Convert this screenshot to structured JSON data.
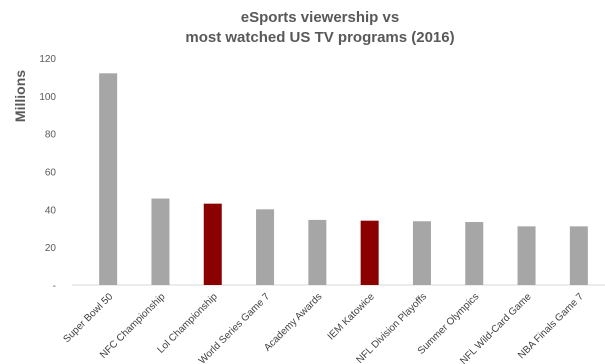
{
  "chart_data": {
    "type": "bar",
    "title_line1": "eSports viewership vs",
    "title_line2": "most watched US TV programs (2016)",
    "xlabel": "",
    "ylabel": "Millions",
    "ylim": [
      0,
      120
    ],
    "yticks": [
      0,
      20,
      40,
      60,
      80,
      100,
      120
    ],
    "ytick_labels": [
      "-",
      "20",
      "40",
      "60",
      "80",
      "100",
      "120"
    ],
    "grid": false,
    "categories": [
      "Super Bowl 50",
      "NFC Championship",
      "Lol Championship",
      "World Series Game 7",
      "Academy Awards",
      "IEM Katowice",
      "NFL Division Playoffs",
      "Summer Olympics",
      "NFL Wild-Card Game",
      "NBA Finals Game 7"
    ],
    "values": [
      111.9,
      45.7,
      43,
      40,
      34.4,
      34,
      33.7,
      33.3,
      31,
      31
    ],
    "highlight": [
      false,
      false,
      true,
      false,
      false,
      true,
      false,
      false,
      false,
      false
    ],
    "colors": {
      "default": "#a6a6a6",
      "highlight": "#8b0000"
    }
  }
}
